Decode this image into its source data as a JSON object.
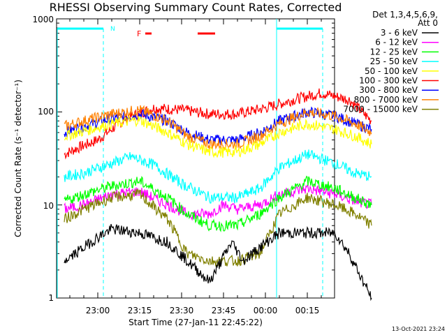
{
  "chart_data": {
    "type": "line",
    "title": "RHESSI Observing Summary Count Rates, Corrected",
    "xlabel": "Start Time (27-Jan-11 22:45:22)",
    "ylabel": "Corrected Count Rate (s⁻¹ detector⁻¹)",
    "y_scale": "log",
    "ylim": [
      1,
      1000
    ],
    "x_tick_labels": [
      "23:00",
      "23:15",
      "23:30",
      "23:45",
      "00:00",
      "00:15"
    ],
    "y_tick_labels": [
      "1",
      "10",
      "100",
      "1000"
    ],
    "legend": {
      "placement": "top-right outside",
      "title_line1": "Det 1,3,4,5,6,9,",
      "title_line2": "Att 0",
      "entries": [
        {
          "name": "3 - 6 keV",
          "color": "#000000"
        },
        {
          "name": "6 - 12 keV",
          "color": "#ff00ff"
        },
        {
          "name": "12 - 25 keV",
          "color": "#00ff00"
        },
        {
          "name": "25 - 50 keV",
          "color": "#00ffff"
        },
        {
          "name": "50 - 100 keV",
          "color": "#ffff00"
        },
        {
          "name": "100 - 300 keV",
          "color": "#ff0000"
        },
        {
          "name": "300 - 800 keV",
          "color": "#0000ff"
        },
        {
          "name": "800 - 7000 keV",
          "color": "#ff8000"
        },
        {
          "name": "7000 - 15000 keV",
          "color": "#808000"
        }
      ]
    },
    "annotations": {
      "night_label": "N",
      "flare_label": "F",
      "timestamp": "13-Oct-2021 23:24"
    },
    "series": [
      {
        "name": "100 - 300 keV",
        "color": "#ff0000",
        "points": [
          [
            -12,
            35
          ],
          [
            -8,
            40
          ],
          [
            0,
            50
          ],
          [
            10,
            85
          ],
          [
            20,
            110
          ],
          [
            30,
            105
          ],
          [
            40,
            95
          ],
          [
            50,
            95
          ],
          [
            60,
            110
          ],
          [
            70,
            135
          ],
          [
            80,
            160
          ],
          [
            90,
            135
          ],
          [
            98,
            80
          ]
        ]
      },
      {
        "name": "300 - 800 keV",
        "color": "#0000ff",
        "points": [
          [
            -12,
            60
          ],
          [
            -5,
            70
          ],
          [
            5,
            85
          ],
          [
            15,
            95
          ],
          [
            25,
            80
          ],
          [
            32,
            60
          ],
          [
            40,
            50
          ],
          [
            50,
            50
          ],
          [
            58,
            60
          ],
          [
            65,
            80
          ],
          [
            75,
            100
          ],
          [
            85,
            90
          ],
          [
            92,
            75
          ],
          [
            98,
            65
          ]
        ]
      },
      {
        "name": "800 - 7000 keV",
        "color": "#ff8000",
        "points": [
          [
            -12,
            70
          ],
          [
            -5,
            80
          ],
          [
            5,
            95
          ],
          [
            15,
            105
          ],
          [
            25,
            80
          ],
          [
            32,
            55
          ],
          [
            40,
            45
          ],
          [
            50,
            45
          ],
          [
            58,
            55
          ],
          [
            65,
            75
          ],
          [
            75,
            100
          ],
          [
            85,
            90
          ],
          [
            92,
            75
          ],
          [
            98,
            60
          ]
        ]
      },
      {
        "name": "50 - 100 keV",
        "color": "#ffff00",
        "points": [
          [
            -12,
            55
          ],
          [
            -5,
            62
          ],
          [
            5,
            75
          ],
          [
            15,
            82
          ],
          [
            25,
            60
          ],
          [
            32,
            45
          ],
          [
            40,
            37
          ],
          [
            50,
            37
          ],
          [
            58,
            45
          ],
          [
            65,
            60
          ],
          [
            75,
            75
          ],
          [
            85,
            65
          ],
          [
            92,
            55
          ],
          [
            98,
            45
          ]
        ]
      },
      {
        "name": "25 - 50 keV",
        "color": "#00ffff",
        "points": [
          [
            -12,
            20
          ],
          [
            -5,
            22
          ],
          [
            5,
            28
          ],
          [
            12,
            33
          ],
          [
            20,
            27
          ],
          [
            30,
            17
          ],
          [
            40,
            12
          ],
          [
            50,
            12
          ],
          [
            58,
            15
          ],
          [
            65,
            25
          ],
          [
            75,
            35
          ],
          [
            85,
            28
          ],
          [
            92,
            22
          ],
          [
            98,
            20
          ]
        ]
      },
      {
        "name": "6 - 12 keV",
        "color": "#ff00ff",
        "points": [
          [
            -12,
            9
          ],
          [
            -5,
            10
          ],
          [
            5,
            13
          ],
          [
            15,
            14
          ],
          [
            25,
            10
          ],
          [
            32,
            8
          ],
          [
            40,
            8
          ],
          [
            45,
            10
          ],
          [
            50,
            9
          ],
          [
            58,
            10
          ],
          [
            65,
            13
          ],
          [
            75,
            15
          ],
          [
            85,
            13
          ],
          [
            92,
            11
          ],
          [
            98,
            10
          ]
        ]
      },
      {
        "name": "12 - 25 keV",
        "color": "#00ff00",
        "points": [
          [
            -12,
            11
          ],
          [
            -5,
            13
          ],
          [
            5,
            16
          ],
          [
            15,
            18
          ],
          [
            25,
            12
          ],
          [
            32,
            8
          ],
          [
            40,
            6
          ],
          [
            50,
            6
          ],
          [
            58,
            8
          ],
          [
            65,
            12
          ],
          [
            75,
            18
          ],
          [
            85,
            15
          ],
          [
            92,
            12
          ],
          [
            98,
            10
          ]
        ]
      },
      {
        "name": "7000 - 15000 keV",
        "color": "#808000",
        "points": [
          [
            -12,
            7
          ],
          [
            -5,
            9
          ],
          [
            5,
            12
          ],
          [
            15,
            13
          ],
          [
            25,
            7
          ],
          [
            32,
            3
          ],
          [
            40,
            2.5
          ],
          [
            50,
            2.5
          ],
          [
            58,
            3
          ],
          [
            65,
            8
          ],
          [
            75,
            12
          ],
          [
            85,
            10
          ],
          [
            92,
            8
          ],
          [
            98,
            6
          ]
        ]
      },
      {
        "name": "3 - 6 keV",
        "color": "#000000",
        "points": [
          [
            -12,
            2.5
          ],
          [
            -8,
            3
          ],
          [
            0,
            4.5
          ],
          [
            5,
            5.5
          ],
          [
            15,
            5
          ],
          [
            25,
            4
          ],
          [
            32,
            2.5
          ],
          [
            40,
            1.5
          ],
          [
            48,
            4
          ],
          [
            52,
            2.5
          ],
          [
            58,
            3.5
          ],
          [
            65,
            5
          ],
          [
            75,
            5
          ],
          [
            85,
            5
          ],
          [
            90,
            3
          ],
          [
            95,
            1.5
          ],
          [
            98,
            1
          ]
        ]
      }
    ]
  }
}
